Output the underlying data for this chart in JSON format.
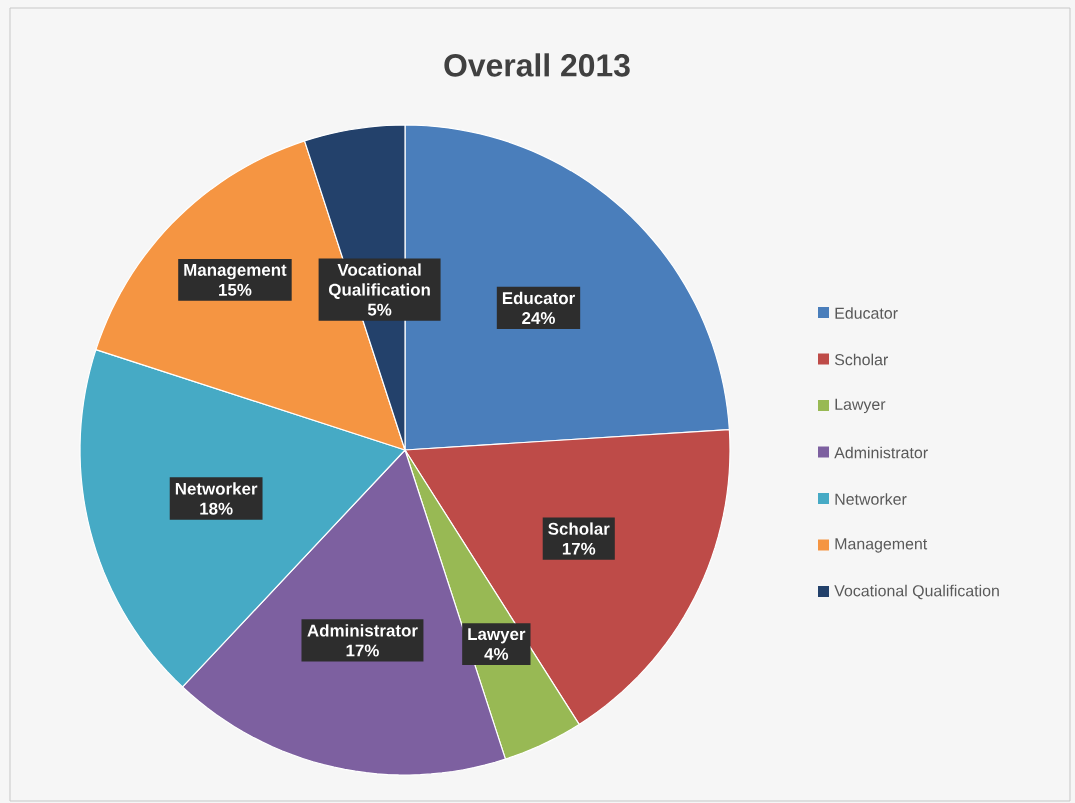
{
  "chart_data": {
    "type": "pie",
    "title": "Overall  2013",
    "categories": [
      "Educator",
      "Scholar",
      "Lawyer",
      "Administrator",
      "Networker",
      "Management",
      "Vocational Qualification"
    ],
    "values": [
      24,
      17,
      4,
      17,
      18,
      15,
      5
    ],
    "value_labels": [
      "24%",
      "17%",
      "4%",
      "17%",
      "18%",
      "15%",
      "5%"
    ],
    "colors": [
      "#4a7ebb",
      "#be4b48",
      "#98b954",
      "#7d60a0",
      "#46aac5",
      "#f59542",
      "#23416b"
    ],
    "legend": "right"
  }
}
